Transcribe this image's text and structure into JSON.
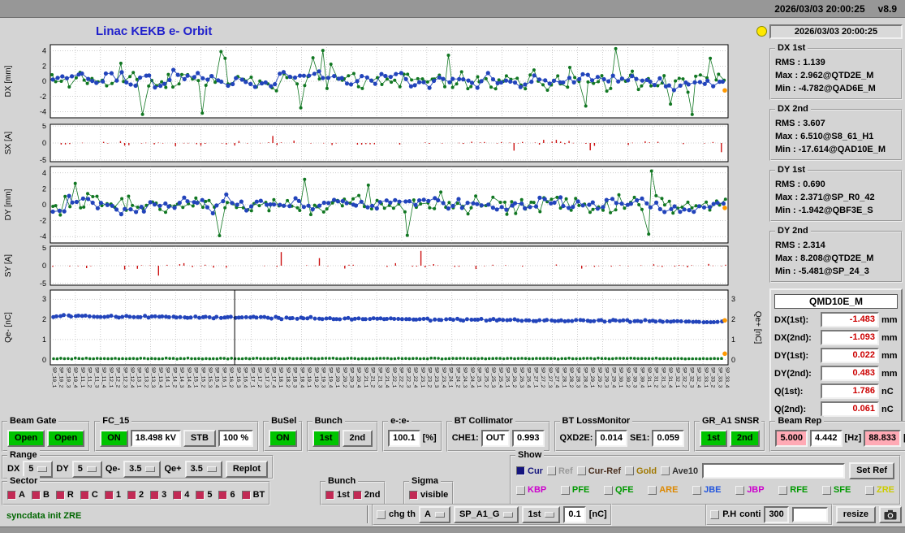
{
  "topbar": {
    "datetime": "2026/03/03 20:00:25",
    "version": "v8.9"
  },
  "title": "Linac KEKB e- Orbit",
  "clock": "2026/03/03 20:00:25",
  "stats": {
    "dx1": {
      "label": "DX 1st",
      "rms": "RMS : 1.139",
      "max": "Max : 2.962@QTD2E_M",
      "min": "Min : -4.782@QAD6E_M"
    },
    "dx2": {
      "label": "DX 2nd",
      "rms": "RMS : 3.607",
      "max": "Max : 6.510@S8_61_H1",
      "min": "Min : -17.614@QAD10E_M"
    },
    "dy1": {
      "label": "DY 1st",
      "rms": "RMS : 0.690",
      "max": "Max : 2.371@SP_R0_42",
      "min": "Min : -1.942@QBF3E_S"
    },
    "dy2": {
      "label": "DY 2nd",
      "rms": "RMS : 2.314",
      "max": "Max : 8.208@QTD2E_M",
      "min": "Min : -5.481@SP_24_3"
    }
  },
  "qmd": {
    "title": "QMD10E_M",
    "rows": [
      {
        "label": "DX(1st):",
        "value": "-1.483",
        "unit": "mm"
      },
      {
        "label": "DX(2nd):",
        "value": "-1.093",
        "unit": "mm"
      },
      {
        "label": "DY(1st):",
        "value": "0.022",
        "unit": "mm"
      },
      {
        "label": "DY(2nd):",
        "value": "0.483",
        "unit": "mm"
      },
      {
        "label": "Q(1st):",
        "value": "1.786",
        "unit": "nC"
      },
      {
        "label": "Q(2nd):",
        "value": "0.061",
        "unit": "nC"
      }
    ]
  },
  "beam_gate": {
    "label": "Beam Gate",
    "b1": "Open",
    "b2": "Open"
  },
  "fc15": {
    "label": "FC_15",
    "on": "ON",
    "kv": "18.498 kV",
    "stb": "STB",
    "pct": "100 %"
  },
  "busel": {
    "label": "BuSel",
    "on": "ON"
  },
  "bunch": {
    "label": "Bunch",
    "b1": "1st",
    "b2": "2nd"
  },
  "ee": {
    "label": "e-:e-",
    "value": "100.1",
    "unit": "[%]"
  },
  "bt_coll": {
    "label": "BT Collimator",
    "che1": "CHE1:",
    "state": "OUT",
    "value": "0.993"
  },
  "bt_loss": {
    "label": "BT LossMonitor",
    "qxd2e": "QXD2E:",
    "qxd2e_val": "0.014",
    "se1": "SE1:",
    "se1_val": "0.059"
  },
  "gr_snsr": {
    "label": "GR_A1 SNSR",
    "b1": "1st",
    "b2": "2nd"
  },
  "beam_rep": {
    "label": "Beam Rep",
    "v1": "5.000",
    "v2": "4.442",
    "hz": "[Hz]",
    "v3": "88.833",
    "pct": "[%]"
  },
  "range": {
    "label": "Range",
    "dx": "DX",
    "dx_val": "5",
    "dy": "DY",
    "dy_val": "5",
    "qem": "Qe-",
    "qem_val": "3.5",
    "qep": "Qe+",
    "qep_val": "3.5",
    "replot": "Replot"
  },
  "show": {
    "label": "Show",
    "row1": [
      {
        "label": "Cur",
        "color": "#15157e",
        "checked": true
      },
      {
        "label": "Ref",
        "color": "#9a9a9a",
        "checked": false
      },
      {
        "label": "Cur-Ref",
        "color": "#4a3020",
        "checked": false
      },
      {
        "label": "Gold",
        "color": "#a07800",
        "checked": false
      },
      {
        "label": "Ave10",
        "color": "#303030",
        "checked": false
      }
    ],
    "set_ref": "Set Ref",
    "row2": [
      {
        "label": "KBP",
        "color": "#cc00cc"
      },
      {
        "label": "PFE",
        "color": "#009900"
      },
      {
        "label": "QFE",
        "color": "#009900"
      },
      {
        "label": "ARE",
        "color": "#dd8800"
      },
      {
        "label": "JBE",
        "color": "#2255dd"
      },
      {
        "label": "JBP",
        "color": "#cc00cc"
      },
      {
        "label": "RFE",
        "color": "#009900"
      },
      {
        "label": "SFE",
        "color": "#009900"
      },
      {
        "label": "ZRE",
        "color": "#cccc00"
      }
    ]
  },
  "sector": {
    "label": "Sector",
    "items": [
      "A",
      "B",
      "R",
      "C",
      "1",
      "2",
      "3",
      "4",
      "5",
      "6",
      "BT"
    ]
  },
  "bunch_sel": {
    "label": "Bunch",
    "items": [
      "1st",
      "2nd"
    ]
  },
  "sigma": {
    "label": "Sigma",
    "item": "visible"
  },
  "statusbar": {
    "message": "syncdata init ZRE",
    "chg_th": "chg th",
    "dd_a": "A",
    "dd_sp": "SP_A1_G",
    "dd_bunch": "1st",
    "threshold": "0.1",
    "threshold_unit": "[nC]",
    "ph": "P.H",
    "conti": "conti",
    "count": "300",
    "resize": "resize"
  },
  "chart_data": [
    {
      "id": "dx",
      "kind": "orbit",
      "type": "scatter",
      "ylabel": "DX [mm]",
      "ylim": [
        -4.8,
        4.8
      ],
      "yticks": [
        4,
        2,
        0,
        -2,
        -4
      ],
      "series": [
        {
          "name": "1st bunch",
          "color": "#2244bb"
        },
        {
          "name": "2nd bunch",
          "color": "#117722"
        }
      ],
      "end_marker": -1.2,
      "grid": true,
      "note": "per-BPM values not legible at source resolution; rendered as representative seeded noise"
    },
    {
      "id": "sx",
      "kind": "bars",
      "type": "bar",
      "ylabel": "SX [A]",
      "ylim": [
        -5.5,
        5.5
      ],
      "yticks": [
        5,
        0,
        -5
      ],
      "color": "#cc1111",
      "grid": true
    },
    {
      "id": "dy",
      "kind": "orbit",
      "type": "scatter",
      "ylabel": "DY [mm]",
      "ylim": [
        -4.8,
        4.8
      ],
      "yticks": [
        4,
        2,
        0,
        -2,
        -4
      ],
      "series": [
        {
          "name": "1st bunch",
          "color": "#2244bb"
        },
        {
          "name": "2nd bunch",
          "color": "#117722"
        }
      ],
      "end_marker": -0.4,
      "grid": true
    },
    {
      "id": "sy",
      "kind": "bars",
      "type": "bar",
      "ylabel": "SY [A]",
      "ylim": [
        -5.5,
        5.5
      ],
      "yticks": [
        5,
        0,
        -5
      ],
      "color": "#cc1111",
      "grid": true
    },
    {
      "id": "qe",
      "kind": "charge",
      "type": "scatter",
      "ylabel": "Qe- [nC]",
      "ylabel_right": "Qe+ [nC]",
      "ylim": [
        -0.25,
        3.45
      ],
      "yticks": [
        3,
        2,
        1,
        0
      ],
      "series": [
        {
          "name": "Qe-",
          "color": "#2244bb",
          "level": 2.05
        },
        {
          "name": "Qe+",
          "color": "#117722",
          "level": 0.06
        }
      ],
      "marker_line_x_frac": 0.272,
      "end_markers": [
        1.95,
        0.3
      ],
      "grid": true
    }
  ],
  "bpm_label_sample": [
    "SP_36_4",
    "SP_38_4",
    "SP_42_4",
    "SP_46_4",
    "SP_52_4"
  ]
}
